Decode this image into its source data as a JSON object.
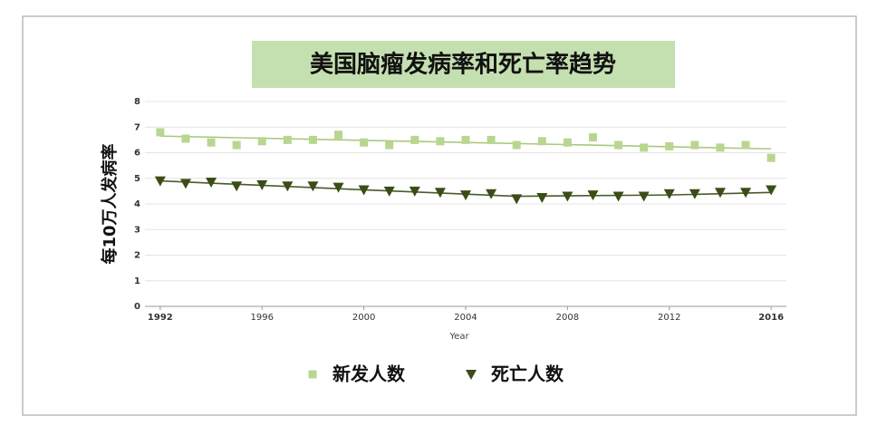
{
  "chart_data": {
    "type": "scatter-trend",
    "title": "美国脑瘤发病率和死亡率趋势",
    "x_label": "Year",
    "y_label": "每10万人发病率",
    "x": [
      1992,
      1993,
      1994,
      1995,
      1996,
      1997,
      1998,
      1999,
      2000,
      2001,
      2002,
      2003,
      2004,
      2005,
      2006,
      2007,
      2008,
      2009,
      2010,
      2011,
      2012,
      2013,
      2014,
      2015,
      2016
    ],
    "xlim": [
      1991.4,
      2016.6
    ],
    "xticks": [
      1992,
      1996,
      2000,
      2004,
      2008,
      2012,
      2016
    ],
    "ylim": [
      0,
      8
    ],
    "yticks": [
      0,
      1,
      2,
      3,
      4,
      5,
      6,
      7,
      8
    ],
    "grid": true,
    "legend": "bottom",
    "series": [
      {
        "name": "新发人数",
        "color": "#b9d68f",
        "marker": "square",
        "values": [
          6.8,
          6.55,
          6.4,
          6.3,
          6.45,
          6.5,
          6.5,
          6.7,
          6.4,
          6.3,
          6.5,
          6.45,
          6.5,
          6.5,
          6.3,
          6.45,
          6.4,
          6.6,
          6.3,
          6.2,
          6.25,
          6.3,
          6.2,
          6.3,
          5.8
        ],
        "trend": {
          "x": [
            1992,
            2016
          ],
          "values": [
            6.65,
            6.15
          ]
        }
      },
      {
        "name": "死亡人数",
        "color": "#3b4d17",
        "marker": "triangle-down",
        "values": [
          4.9,
          4.8,
          4.85,
          4.7,
          4.75,
          4.7,
          4.7,
          4.65,
          4.55,
          4.5,
          4.5,
          4.45,
          4.35,
          4.4,
          4.2,
          4.25,
          4.3,
          4.35,
          4.3,
          4.3,
          4.4,
          4.4,
          4.45,
          4.45,
          4.55
        ],
        "trend": {
          "x": [
            1992,
            2000,
            2006,
            2012,
            2016
          ],
          "values": [
            4.9,
            4.55,
            4.3,
            4.35,
            4.45
          ]
        }
      }
    ]
  }
}
